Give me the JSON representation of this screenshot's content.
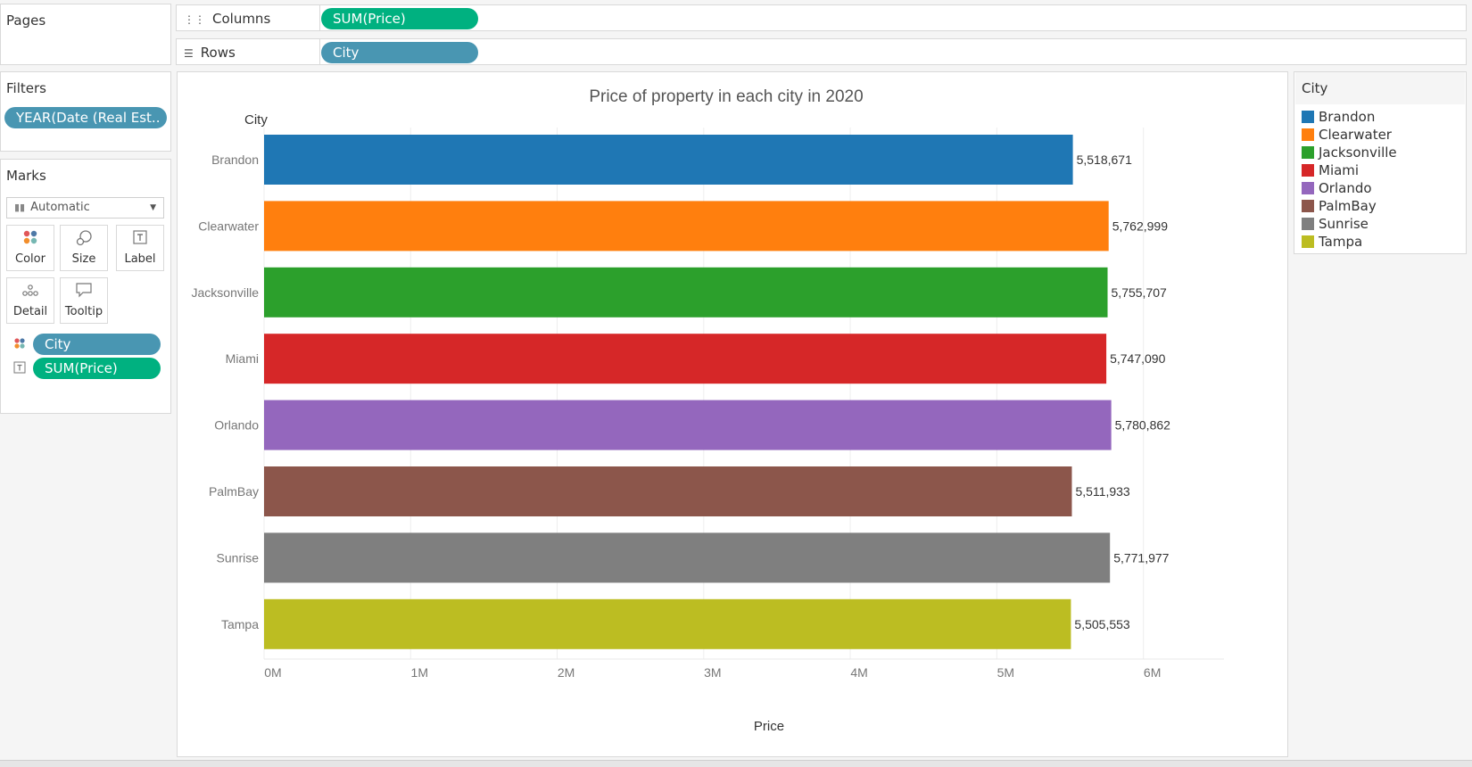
{
  "pages": {
    "title": "Pages"
  },
  "shelves": {
    "columns_label": "Columns",
    "columns_pill": "SUM(Price)",
    "rows_label": "Rows",
    "rows_pill": "City"
  },
  "filters": {
    "title": "Filters",
    "pill": "YEAR(Date (Real Est.."
  },
  "marks": {
    "title": "Marks",
    "type": "Automatic",
    "buttons": {
      "color": "Color",
      "size": "Size",
      "label": "Label",
      "detail": "Detail",
      "tooltip": "Tooltip"
    },
    "city_pill": "City",
    "price_pill": "SUM(Price)"
  },
  "legend": {
    "title": "City",
    "items": [
      {
        "label": "Brandon",
        "color": "#1f77b4"
      },
      {
        "label": "Clearwater",
        "color": "#ff7f0e"
      },
      {
        "label": "Jacksonville",
        "color": "#2ca02c"
      },
      {
        "label": "Miami",
        "color": "#d62728"
      },
      {
        "label": "Orlando",
        "color": "#9467bd"
      },
      {
        "label": "PalmBay",
        "color": "#8c564b"
      },
      {
        "label": "Sunrise",
        "color": "#7f7f7f"
      },
      {
        "label": "Tampa",
        "color": "#bcbd22"
      }
    ]
  },
  "chart_data": {
    "type": "bar",
    "orientation": "horizontal",
    "title": "Price of property in each city in 2020",
    "category_header": "City",
    "xlabel": "Price",
    "xlim": [
      0,
      6550000
    ],
    "ticks": [
      {
        "value": 0,
        "label": "0M"
      },
      {
        "value": 1000000,
        "label": "1M"
      },
      {
        "value": 2000000,
        "label": "2M"
      },
      {
        "value": 3000000,
        "label": "3M"
      },
      {
        "value": 4000000,
        "label": "4M"
      },
      {
        "value": 5000000,
        "label": "5M"
      },
      {
        "value": 6000000,
        "label": "6M"
      }
    ],
    "categories": [
      "Brandon",
      "Clearwater",
      "Jacksonville",
      "Miami",
      "Orlando",
      "PalmBay",
      "Sunrise",
      "Tampa"
    ],
    "values": [
      5518671,
      5762999,
      5755707,
      5747090,
      5780862,
      5511933,
      5771977,
      5505553
    ],
    "value_labels": [
      "5,518,671",
      "5,762,999",
      "5,755,707",
      "5,747,090",
      "5,780,862",
      "5,511,933",
      "5,771,977",
      "5,505,553"
    ],
    "colors": [
      "#1f77b4",
      "#ff7f0e",
      "#2ca02c",
      "#d62728",
      "#9467bd",
      "#8c564b",
      "#7f7f7f",
      "#bcbd22"
    ],
    "grid": "vertical",
    "legend": "right"
  }
}
